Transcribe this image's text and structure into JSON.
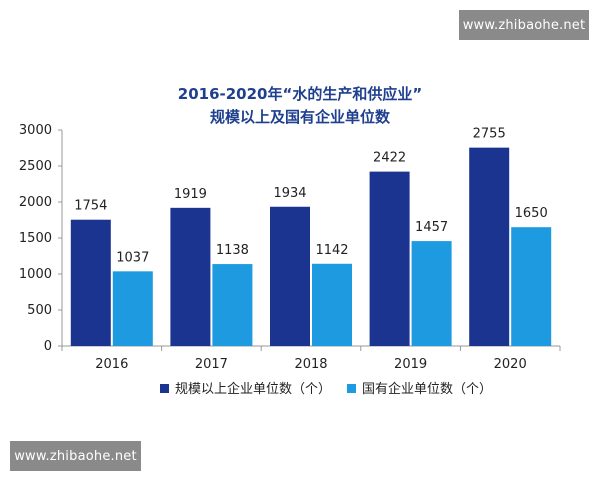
{
  "watermark": {
    "top": "www.zhibaohe.net",
    "bottom": "www.zhibaohe.net"
  },
  "chart_data": {
    "type": "bar",
    "title": "2016-2020年“水的生产和供应业”",
    "subtitle": "规模以上及国有企业单位数",
    "categories": [
      "2016",
      "2017",
      "2018",
      "2019",
      "2020"
    ],
    "series": [
      {
        "name": "规模以上企业单位数（个）",
        "values": [
          1754,
          1919,
          1934,
          2422,
          2755
        ],
        "color": "#1a3490"
      },
      {
        "name": "国有企业单位数（个）",
        "values": [
          1037,
          1138,
          1142,
          1457,
          1650
        ],
        "color": "#1e9ae0"
      }
    ],
    "ylim": [
      0,
      3000
    ],
    "yticks": [
      0,
      500,
      1000,
      1500,
      2000,
      2500,
      3000
    ],
    "xlabel": "",
    "ylabel": "",
    "grid": false,
    "legend": "bottom"
  }
}
